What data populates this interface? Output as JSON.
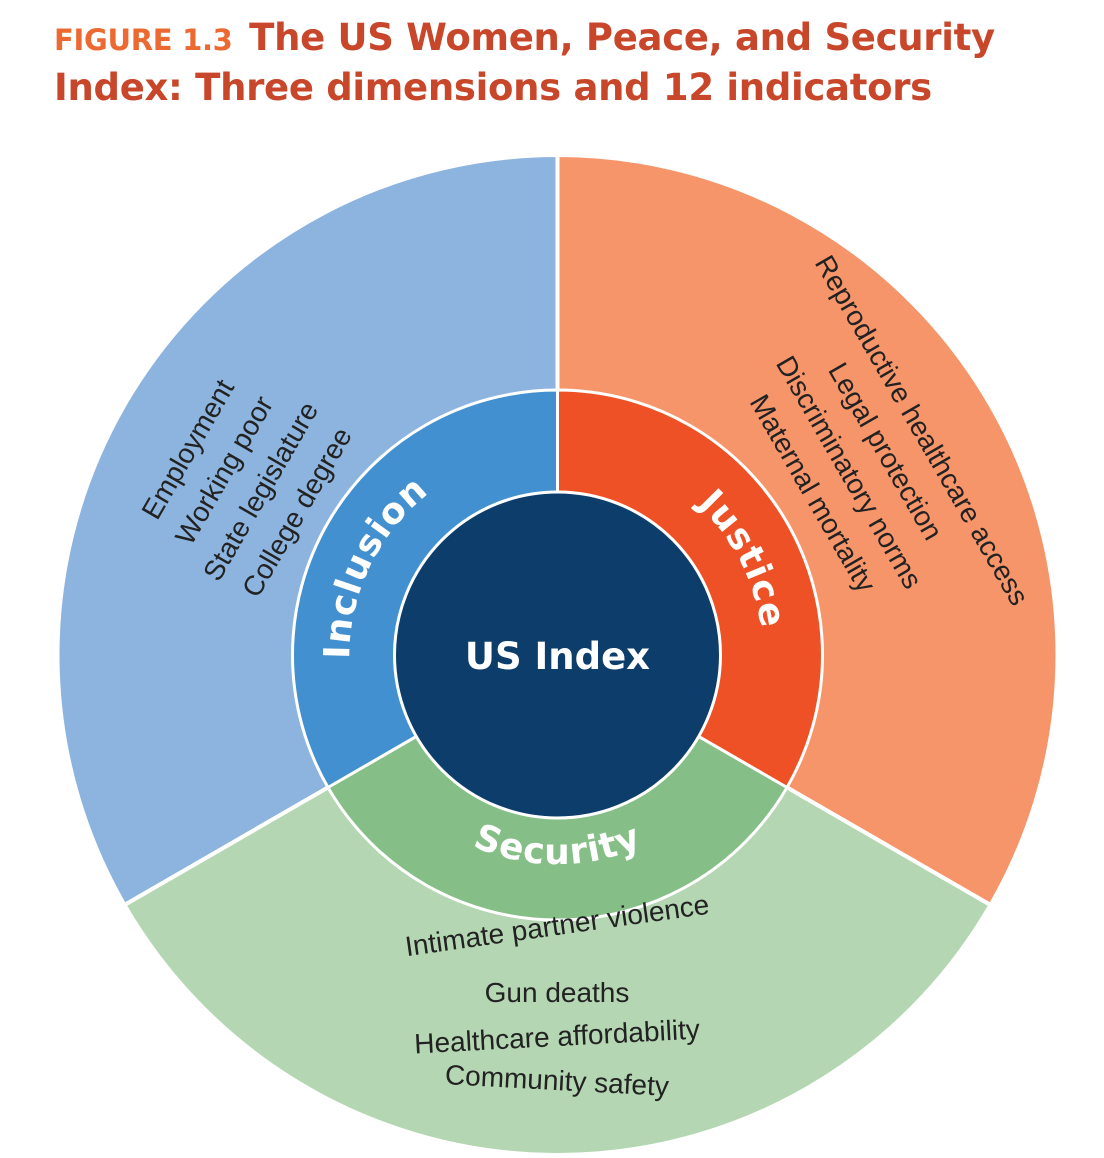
{
  "figure": {
    "label": "FIGURE 1.3",
    "title_line1": "The US Women, Peace, and Security",
    "title_line2": "Index: Three dimensions and 12 indicators"
  },
  "center": {
    "label": "US Index",
    "color": "#0c3d6b"
  },
  "dimensions": {
    "inclusion": {
      "label": "Inclusion",
      "inner_color": "#4290cf",
      "outer_color": "#8db4de",
      "indicators": [
        "Employment",
        "Working poor",
        "State legislature",
        "College degree"
      ]
    },
    "justice": {
      "label": "Justice",
      "inner_color": "#ee5125",
      "outer_color": "#f6956a",
      "indicators": [
        "Reproductive healthcare access",
        "Legal protection",
        "Discriminatory norms",
        "Maternal mortality"
      ]
    },
    "security": {
      "label": "Security",
      "inner_color": "#86be87",
      "outer_color": "#b4d6b2",
      "indicators": [
        "Intimate partner violence",
        "Gun deaths",
        "Healthcare affordability",
        "Community safety"
      ]
    }
  }
}
